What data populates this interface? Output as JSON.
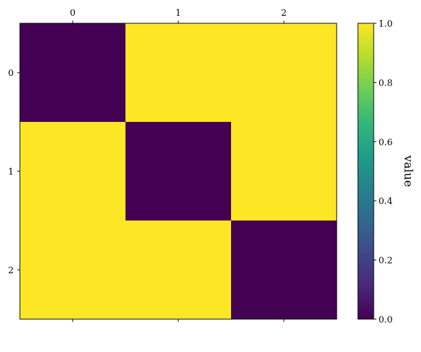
{
  "chart_data": {
    "type": "heatmap",
    "x_tick_labels": [
      "0",
      "1",
      "2"
    ],
    "y_tick_labels": [
      "0",
      "1",
      "2"
    ],
    "values": [
      [
        0.0,
        1.0,
        1.0
      ],
      [
        1.0,
        0.0,
        1.0
      ],
      [
        1.0,
        1.0,
        0.0
      ]
    ],
    "xaxis_position": "top",
    "colormap": "viridis",
    "colorbar": {
      "label": "value",
      "range": [
        0.0,
        1.0
      ],
      "tick_labels": [
        "0.0",
        "0.2",
        "0.4",
        "0.6",
        "0.8",
        "1.0"
      ],
      "tick_values": [
        0.0,
        0.2,
        0.4,
        0.6,
        0.8,
        1.0
      ],
      "gradient_colors": [
        "#440154",
        "#482878",
        "#3e4989",
        "#31688e",
        "#26828e",
        "#1f9e89",
        "#35b779",
        "#6ece58",
        "#b5de2b",
        "#fde725"
      ]
    },
    "grid": false
  }
}
